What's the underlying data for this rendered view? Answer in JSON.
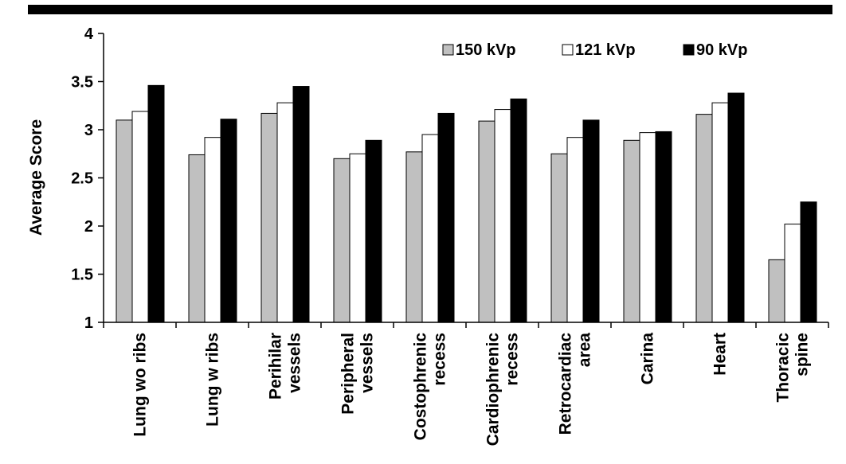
{
  "chart_data": {
    "type": "bar",
    "title": "",
    "xlabel": "",
    "ylabel": "Average Score",
    "ylim": [
      1,
      4
    ],
    "yticks": [
      "1",
      "1.5",
      "2",
      "2.5",
      "3",
      "3.5",
      "4"
    ],
    "grid": false,
    "legend_position": "top-right",
    "categories": [
      [
        "Lung wo ribs"
      ],
      [
        "Lung w ribs"
      ],
      [
        "Perihilar",
        "vessels"
      ],
      [
        "Peripheral",
        "vessels"
      ],
      [
        "Costophrenic",
        "recess"
      ],
      [
        "Cardiophrenic",
        "recess"
      ],
      [
        "Retrocardiac",
        "area"
      ],
      [
        "Carina"
      ],
      [
        "Heart"
      ],
      [
        "Thoracic",
        "spine"
      ]
    ],
    "series": [
      {
        "name": "150 kVp",
        "color": "#c0c0c0",
        "values": [
          3.1,
          2.74,
          3.17,
          2.7,
          2.77,
          3.09,
          2.75,
          2.89,
          3.16,
          1.65
        ]
      },
      {
        "name": "121 kVp",
        "color": "#ffffff",
        "values": [
          3.19,
          2.92,
          3.28,
          2.75,
          2.95,
          3.21,
          2.92,
          2.97,
          3.28,
          2.02
        ]
      },
      {
        "name": "90 kVp",
        "color": "#000000",
        "values": [
          3.46,
          3.11,
          3.45,
          2.89,
          3.17,
          3.32,
          3.1,
          2.98,
          3.38,
          2.25
        ]
      }
    ]
  }
}
